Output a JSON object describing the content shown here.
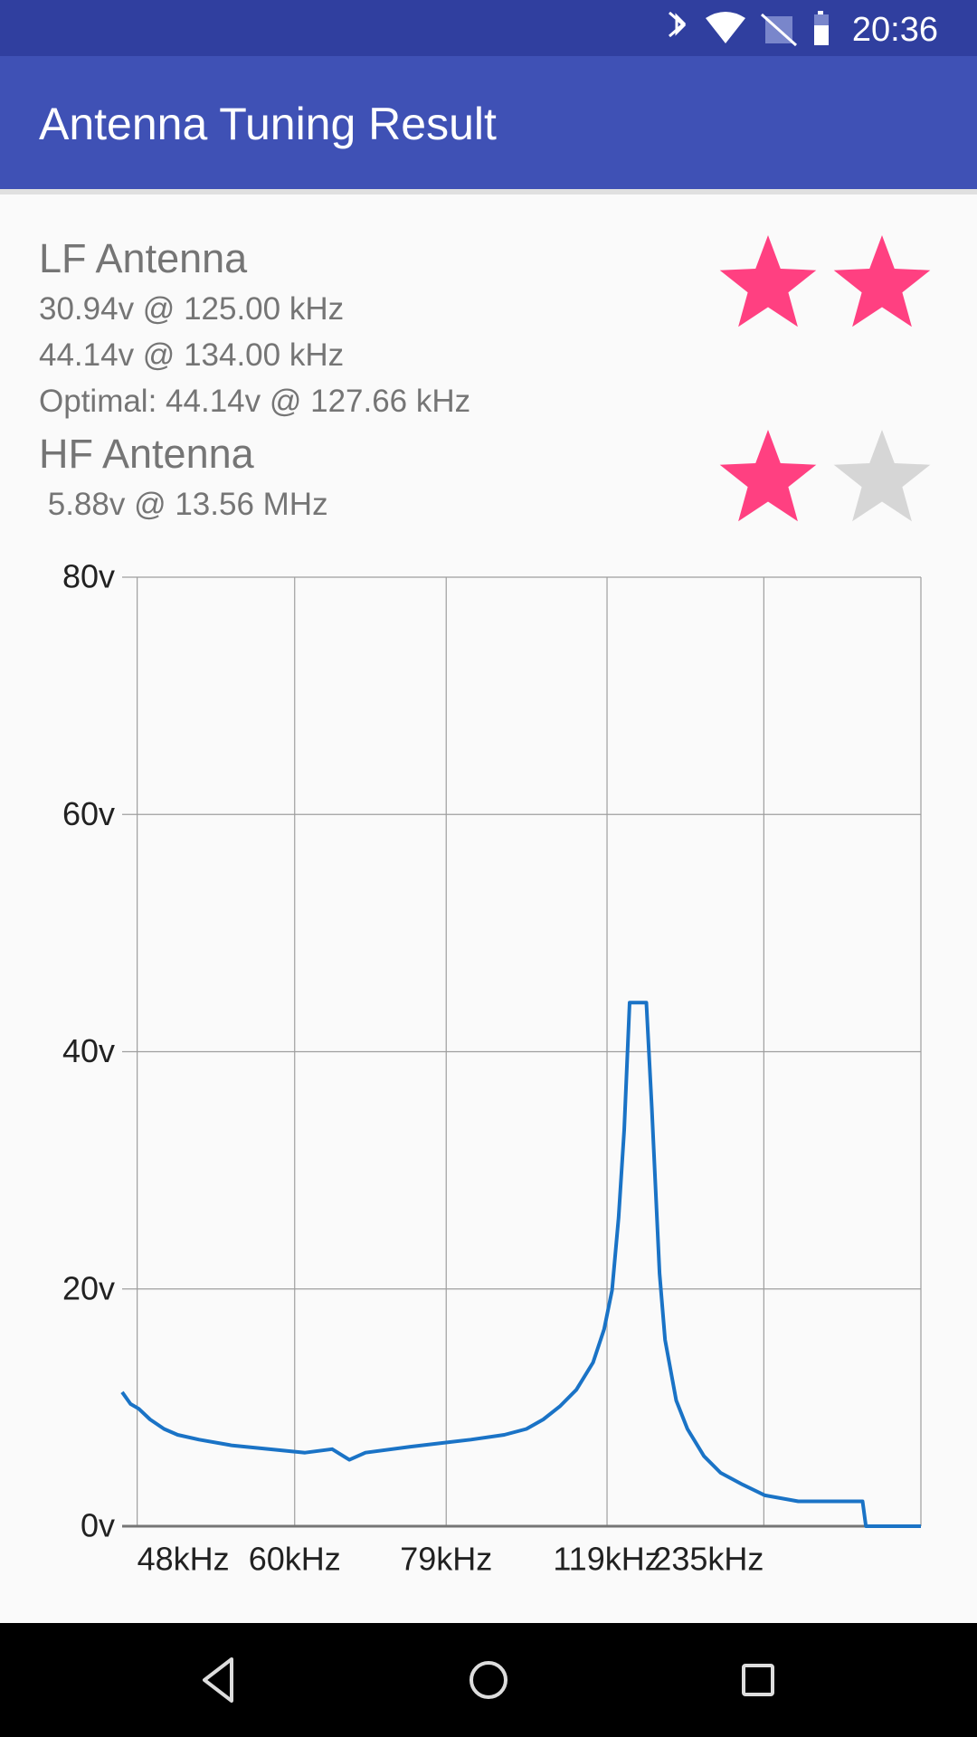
{
  "status_bar": {
    "time": "20:36"
  },
  "app_bar": {
    "title": "Antenna Tuning Result"
  },
  "lf_antenna": {
    "heading": "LF Antenna",
    "lines": [
      "30.94v @ 125.00 kHz",
      "44.14v @ 134.00 kHz",
      "Optimal: 44.14v @ 127.66 kHz"
    ],
    "rating": {
      "filled": 2,
      "total": 2
    }
  },
  "hf_antenna": {
    "heading": "HF Antenna",
    "lines": [
      " 5.88v @ 13.56 MHz"
    ],
    "rating": {
      "filled": 1,
      "total": 2
    }
  },
  "chart_data": {
    "type": "line",
    "x_scale": "reciprocal",
    "x": [
      47.1,
      47.6,
      48.1,
      48.8,
      49.7,
      50.6,
      52.1,
      54.6,
      61.0,
      63.8,
      65.7,
      67.6,
      73.5,
      83.3,
      89.9,
      94.9,
      99.1,
      103.6,
      108.5,
      114.0,
      117.9,
      120.9,
      123.5,
      125.8,
      128.1,
      135.8,
      138.5,
      142.6,
      145.6,
      152.1,
      159.3,
      171.3,
      185.2,
      207.8,
      236.7,
      299,
      608.6,
      643,
      10000
    ],
    "series": [
      {
        "color": "#1a73c6",
        "values": [
          11.3,
          10.3,
          9.9,
          9.0,
          8.2,
          7.7,
          7.3,
          6.8,
          6.2,
          6.5,
          5.6,
          6.2,
          6.7,
          7.3,
          7.7,
          8.2,
          9.0,
          10.1,
          11.5,
          13.8,
          16.6,
          19.9,
          26.0,
          33.4,
          44.14,
          44.14,
          35.3,
          21.3,
          15.7,
          10.6,
          8.2,
          5.9,
          4.5,
          3.5,
          2.6,
          2.1,
          2.1,
          0,
          0
        ]
      }
    ],
    "xlim": [
      47.1,
      10000
    ],
    "xticks": [
      {
        "value": 48,
        "label": "48kHz"
      },
      {
        "value": 60,
        "label": "60kHz"
      },
      {
        "value": 79,
        "label": "79kHz"
      },
      {
        "value": 119,
        "label": "119kHz"
      },
      {
        "value": 235,
        "label": "235kHz"
      }
    ],
    "ylim": [
      0,
      80
    ],
    "yticks": [
      {
        "value": 0,
        "label": "0v"
      },
      {
        "value": 20,
        "label": "20v"
      },
      {
        "value": 40,
        "label": "40v"
      },
      {
        "value": 60,
        "label": "60v"
      },
      {
        "value": 80,
        "label": "80v"
      }
    ],
    "grid": true
  }
}
